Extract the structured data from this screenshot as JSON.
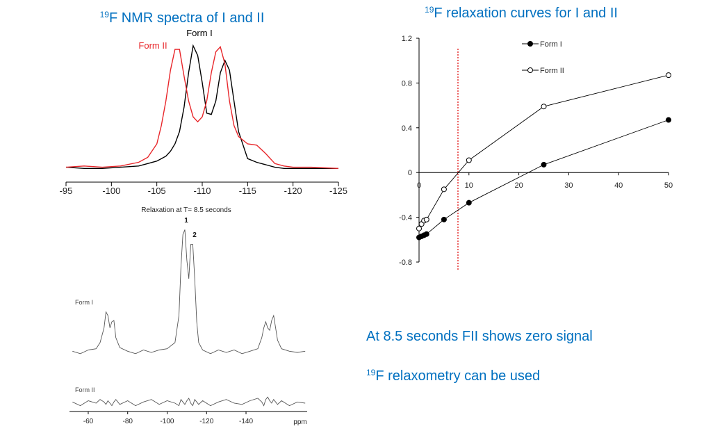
{
  "chart_data": [
    {
      "type": "line",
      "title_superscript": "19",
      "title": "F NMR spectra of I and II",
      "reversed_x": true,
      "x": [
        -95,
        -97,
        -99,
        -101,
        -103,
        -104,
        -105,
        -105.5,
        -106,
        -106.5,
        -107,
        -107.5,
        -108,
        -108.5,
        -109,
        -109.5,
        -110,
        -110.5,
        -111,
        -111.5,
        -112,
        -112.5,
        -113,
        -113.5,
        -114,
        -115,
        -116,
        -117,
        -118,
        -119,
        -120,
        -122,
        -125
      ],
      "series": [
        {
          "name": "Form I",
          "color": "#000000",
          "values": [
            0.01,
            0.0,
            0.0,
            0.01,
            0.02,
            0.04,
            0.06,
            0.08,
            0.1,
            0.14,
            0.2,
            0.3,
            0.5,
            0.78,
            1.0,
            0.92,
            0.7,
            0.45,
            0.44,
            0.55,
            0.78,
            0.88,
            0.8,
            0.55,
            0.3,
            0.08,
            0.05,
            0.03,
            0.01,
            0.0,
            0.0,
            0.0,
            0.0
          ]
        },
        {
          "name": "Form II",
          "color": "#e8262a",
          "values": [
            0.01,
            0.02,
            0.01,
            0.02,
            0.05,
            0.09,
            0.2,
            0.35,
            0.55,
            0.8,
            0.97,
            0.97,
            0.75,
            0.55,
            0.42,
            0.38,
            0.42,
            0.55,
            0.78,
            0.95,
            0.99,
            0.85,
            0.55,
            0.35,
            0.26,
            0.2,
            0.19,
            0.12,
            0.04,
            0.02,
            0.01,
            0.01,
            0.0
          ]
        }
      ],
      "xlim": [
        -95,
        -125
      ],
      "xticks": [
        -95,
        -100,
        -105,
        -110,
        -115,
        -120,
        -125
      ],
      "ylim": [
        -0.1,
        1.1
      ]
    },
    {
      "type": "line",
      "subtitle": "Relaxation at T= 8.5 seconds",
      "xlabel": "ppm",
      "peak_labels": [
        "1",
        "2"
      ],
      "panels": true,
      "x": [
        -52,
        -56,
        -60,
        -64,
        -66,
        -68,
        -69,
        -70,
        -71,
        -72,
        -73,
        -74,
        -76,
        -80,
        -84,
        -88,
        -92,
        -96,
        -100,
        -104,
        -106,
        -107,
        -108,
        -109,
        -110,
        -111,
        -112,
        -113,
        -114,
        -115,
        -116,
        -118,
        -122,
        -126,
        -130,
        -134,
        -138,
        -142,
        -146,
        -148,
        -149,
        -150,
        -151,
        -152,
        -153,
        -154,
        -155,
        -156,
        -158,
        -162,
        -166,
        -170
      ],
      "series": [
        {
          "name": "Form I",
          "color": "#555555",
          "values": [
            0.01,
            -0.01,
            0.02,
            0.03,
            0.08,
            0.2,
            0.33,
            0.3,
            0.2,
            0.25,
            0.26,
            0.12,
            0.04,
            0.01,
            -0.01,
            0.02,
            0.0,
            0.02,
            0.03,
            0.08,
            0.3,
            0.7,
            0.96,
            1.0,
            0.75,
            0.6,
            0.88,
            0.88,
            0.6,
            0.25,
            0.08,
            0.02,
            -0.01,
            0.02,
            0.0,
            0.02,
            -0.01,
            0.01,
            0.03,
            0.12,
            0.2,
            0.25,
            0.2,
            0.18,
            0.26,
            0.3,
            0.2,
            0.1,
            0.03,
            0.01,
            0.0,
            0.01
          ]
        },
        {
          "name": "Form II",
          "color": "#555555",
          "values": [
            0.01,
            -0.02,
            0.02,
            0.0,
            0.03,
            0.01,
            -0.01,
            0.02,
            0.0,
            -0.02,
            0.01,
            0.03,
            -0.01,
            0.02,
            -0.02,
            0.01,
            0.03,
            -0.01,
            0.02,
            0.0,
            -0.02,
            0.03,
            0.01,
            -0.01,
            0.02,
            0.04,
            0.0,
            -0.02,
            0.03,
            0.01,
            -0.01,
            0.02,
            -0.02,
            0.01,
            0.03,
            0.0,
            -0.01,
            0.02,
            0.04,
            0.01,
            -0.02,
            0.03,
            0.05,
            0.02,
            0.0,
            0.03,
            0.01,
            -0.01,
            0.02,
            -0.02,
            0.01,
            0.0
          ]
        }
      ],
      "xlim": [
        -50.5,
        -171
      ],
      "xticks": [
        -60,
        -80,
        -100,
        -120,
        -140
      ],
      "ylim": [
        -0.1,
        1.1
      ]
    },
    {
      "type": "line",
      "title_superscript": "19",
      "title": "F relaxation curves for I and II",
      "markers": true,
      "series": [
        {
          "name": "Form I",
          "color": "#000000",
          "marker_fill": true,
          "x": [
            0,
            0.5,
            1,
            1.5,
            5,
            10,
            25,
            50
          ],
          "values": [
            -0.58,
            -0.57,
            -0.56,
            -0.55,
            -0.42,
            -0.27,
            0.07,
            0.47
          ]
        },
        {
          "name": "Form II",
          "color": "#000000",
          "marker_fill": false,
          "x": [
            0,
            0.5,
            1,
            1.5,
            5,
            10,
            25,
            50
          ],
          "values": [
            -0.5,
            -0.46,
            -0.43,
            -0.42,
            -0.15,
            0.11,
            0.59,
            0.87
          ]
        }
      ],
      "xlim": [
        0,
        50
      ],
      "xticks": [
        0,
        10,
        20,
        30,
        40,
        50
      ],
      "ylim": [
        -0.8,
        1.2
      ],
      "yticks": [
        -0.8,
        -0.4,
        0,
        0.4,
        0.8,
        1.2
      ],
      "vline": {
        "x": 7.8,
        "color": "#e00000"
      },
      "legend": "top-right"
    }
  ],
  "notes": [
    {
      "text": "At 8.5 seconds FII shows zero signal"
    },
    {
      "superscript": "19",
      "text": "F relaxometry can be used"
    }
  ]
}
